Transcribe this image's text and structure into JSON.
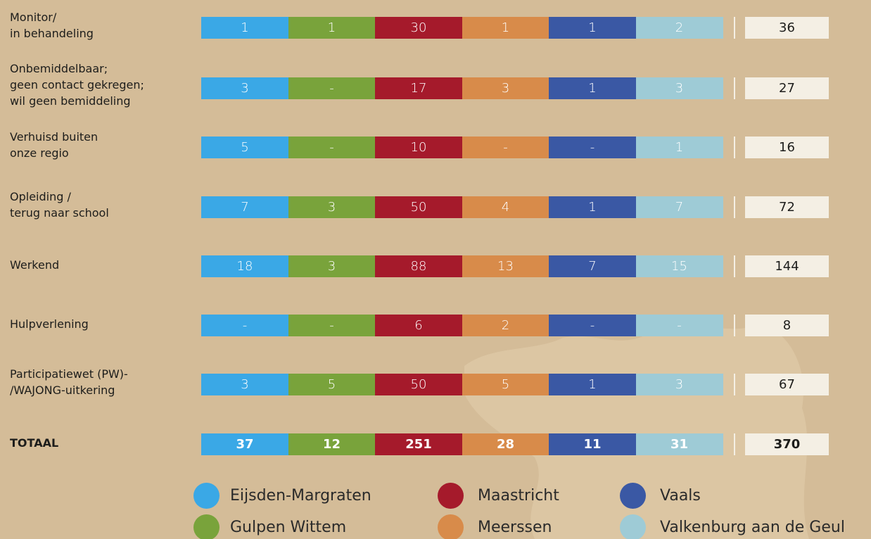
{
  "columns": [
    {
      "name": "Eijsden-Margraten",
      "color": "#3aa8e6"
    },
    {
      "name": "Gulpen Wittem",
      "color": "#79a33b"
    },
    {
      "name": "Maastricht",
      "color": "#a51a2b"
    },
    {
      "name": "Meerssen",
      "color": "#d88b4a"
    },
    {
      "name": "Vaals",
      "color": "#3a58a4"
    },
    {
      "name": "Valkenburg aan de Geul",
      "color": "#9ecbd6"
    }
  ],
  "rows": [
    {
      "label": [
        "Monitor/",
        "in behandeling"
      ],
      "values": [
        "1",
        "1",
        "30",
        "1",
        "1",
        "2"
      ],
      "total": "36"
    },
    {
      "label": [
        "Onbemiddelbaar;",
        "geen contact gekregen;",
        "wil geen bemiddeling"
      ],
      "values": [
        "3",
        "-",
        "17",
        "3",
        "1",
        "3"
      ],
      "total": "27"
    },
    {
      "label": [
        "Verhuisd buiten",
        "onze regio"
      ],
      "values": [
        "5",
        "-",
        "10",
        "-",
        "-",
        "1"
      ],
      "total": "16"
    },
    {
      "label": [
        "Opleiding /",
        "terug naar school"
      ],
      "values": [
        "7",
        "3",
        "50",
        "4",
        "1",
        "7"
      ],
      "total": "72"
    },
    {
      "label": [
        "Werkend"
      ],
      "values": [
        "18",
        "3",
        "88",
        "13",
        "7",
        "15"
      ],
      "total": "144"
    },
    {
      "label": [
        "Hulpverlening"
      ],
      "values": [
        "-",
        "-",
        "6",
        "2",
        "-",
        "-"
      ],
      "total": "8"
    },
    {
      "label": [
        "Participatiewet (PW)-",
        "/WAJONG-uitkering"
      ],
      "values": [
        "3",
        "5",
        "50",
        "5",
        "1",
        "3"
      ],
      "total": "67"
    }
  ],
  "totals": {
    "label": [
      "TOTAAL"
    ],
    "values": [
      "37",
      "12",
      "251",
      "28",
      "11",
      "31"
    ],
    "total": "370"
  }
}
